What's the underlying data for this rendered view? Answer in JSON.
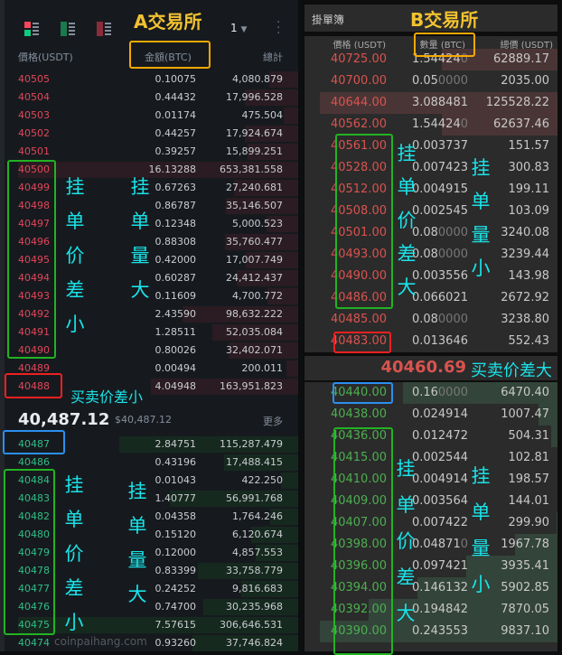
{
  "exchange_a": {
    "title": "A交易所",
    "precision_value": "1",
    "columns": {
      "price": "價格(USDT)",
      "amount": "金額(BTC)",
      "total": "總計"
    },
    "asks": [
      {
        "price": "40505",
        "amount": "0.10075",
        "total": "4,080.879"
      },
      {
        "price": "40504",
        "amount": "0.44432",
        "total": "17,996.528"
      },
      {
        "price": "40503",
        "amount": "0.01174",
        "total": "475.504"
      },
      {
        "price": "40502",
        "amount": "0.44257",
        "total": "17,924.674"
      },
      {
        "price": "40501",
        "amount": "0.39257",
        "total": "15,899.251"
      },
      {
        "price": "40500",
        "amount": "16.13288",
        "total": "653,381.558"
      },
      {
        "price": "40499",
        "amount": "0.67263",
        "total": "27,240.681"
      },
      {
        "price": "40498",
        "amount": "0.86787",
        "total": "35,146.507"
      },
      {
        "price": "40497",
        "amount": "0.12348",
        "total": "5,000.523"
      },
      {
        "price": "40496",
        "amount": "0.88308",
        "total": "35,760.477"
      },
      {
        "price": "40495",
        "amount": "0.42000",
        "total": "17,007.749"
      },
      {
        "price": "40494",
        "amount": "0.60287",
        "total": "24,412.437"
      },
      {
        "price": "40493",
        "amount": "0.11609",
        "total": "4,700.772"
      },
      {
        "price": "40492",
        "amount": "2.43590",
        "total": "98,632.222"
      },
      {
        "price": "40491",
        "amount": "1.28511",
        "total": "52,035.084"
      },
      {
        "price": "40490",
        "amount": "0.80026",
        "total": "32,402.071"
      },
      {
        "price": "40489",
        "amount": "0.00494",
        "total": "200.011"
      },
      {
        "price": "40488",
        "amount": "4.04948",
        "total": "163,951.823"
      }
    ],
    "last_price": "40,487.12",
    "last_price_usd": "$40,487.12",
    "more_label": "更多",
    "bids": [
      {
        "price": "40487",
        "amount": "2.84751",
        "total": "115,287.479"
      },
      {
        "price": "40486",
        "amount": "0.43196",
        "total": "17,488.415"
      },
      {
        "price": "40484",
        "amount": "0.01043",
        "total": "422.250"
      },
      {
        "price": "40483",
        "amount": "1.40777",
        "total": "56,991.768"
      },
      {
        "price": "40482",
        "amount": "0.04358",
        "total": "1,764.246"
      },
      {
        "price": "40480",
        "amount": "0.15120",
        "total": "6,120.674"
      },
      {
        "price": "40479",
        "amount": "0.12000",
        "total": "4,857.553"
      },
      {
        "price": "40478",
        "amount": "0.83399",
        "total": "33,758.779"
      },
      {
        "price": "40477",
        "amount": "0.24252",
        "total": "9,816.683"
      },
      {
        "price": "40476",
        "amount": "0.74700",
        "total": "30,235.968"
      },
      {
        "price": "40475",
        "amount": "7.57615",
        "total": "306,646.531"
      },
      {
        "price": "40474",
        "amount": "0.93260",
        "total": "37,746.824"
      }
    ],
    "annotations": {
      "ask_price_gap": "挂单价差小",
      "ask_volume": "挂单量大",
      "spread": "买卖价差小",
      "bid_price_gap": "挂单价差小",
      "bid_volume": "挂单量大"
    }
  },
  "exchange_b": {
    "title": "B交易所",
    "panel_title": "掛單簿",
    "columns": {
      "price": "價格 (USDT)",
      "amount": "數量 (BTC)",
      "total": "總價 (USDT)"
    },
    "asks": [
      {
        "price": "40725.00",
        "amount": "1.544240",
        "total": "62889.17"
      },
      {
        "price": "40700.00",
        "amount": "0.050000",
        "total": "2035.00"
      },
      {
        "price": "40644.00",
        "amount": "3.088481",
        "total": "125528.22"
      },
      {
        "price": "40562.00",
        "amount": "1.544240",
        "total": "62637.46"
      },
      {
        "price": "40561.00",
        "amount": "0.003737",
        "total": "151.57"
      },
      {
        "price": "40528.00",
        "amount": "0.007423",
        "total": "300.83"
      },
      {
        "price": "40512.00",
        "amount": "0.004915",
        "total": "199.11"
      },
      {
        "price": "40508.00",
        "amount": "0.002545",
        "total": "103.09"
      },
      {
        "price": "40501.00",
        "amount": "0.080000",
        "total": "3240.08"
      },
      {
        "price": "40493.00",
        "amount": "0.080000",
        "total": "3239.44"
      },
      {
        "price": "40490.00",
        "amount": "0.003556",
        "total": "143.98"
      },
      {
        "price": "40486.00",
        "amount": "0.066021",
        "total": "2672.92"
      },
      {
        "price": "40485.00",
        "amount": "0.080000",
        "total": "3238.80"
      },
      {
        "price": "40483.00",
        "amount": "0.013646",
        "total": "552.43"
      }
    ],
    "last_price": "40460.69",
    "bids": [
      {
        "price": "40440.00",
        "amount": "0.160000",
        "total": "6470.40"
      },
      {
        "price": "40438.00",
        "amount": "0.024914",
        "total": "1007.47"
      },
      {
        "price": "40436.00",
        "amount": "0.012472",
        "total": "504.31"
      },
      {
        "price": "40415.00",
        "amount": "0.002544",
        "total": "102.81"
      },
      {
        "price": "40410.00",
        "amount": "0.004914",
        "total": "198.57"
      },
      {
        "price": "40409.00",
        "amount": "0.003564",
        "total": "144.01"
      },
      {
        "price": "40407.00",
        "amount": "0.007422",
        "total": "299.90"
      },
      {
        "price": "40398.00",
        "amount": "0.048710",
        "total": "1967.78"
      },
      {
        "price": "40396.00",
        "amount": "0.097421",
        "total": "3935.41"
      },
      {
        "price": "40394.00",
        "amount": "0.146132",
        "total": "5902.85"
      },
      {
        "price": "40392.00",
        "amount": "0.194842",
        "total": "7870.05"
      },
      {
        "price": "40390.00",
        "amount": "0.243553",
        "total": "9837.10"
      }
    ],
    "annotations": {
      "ask_price_gap": "挂单价差大",
      "ask_volume": "挂单量小",
      "spread": "买卖价差大",
      "bid_price_gap": "挂单价差大",
      "bid_volume": "挂单量小"
    }
  },
  "watermark": "coinpaihang.com",
  "colors": {
    "ask": "#e0475a",
    "bid": "#2fbd85",
    "b_ask": "#d9534f",
    "b_bid": "#4caf50",
    "annotation": "#19e3e8",
    "title": "#f2c230"
  }
}
